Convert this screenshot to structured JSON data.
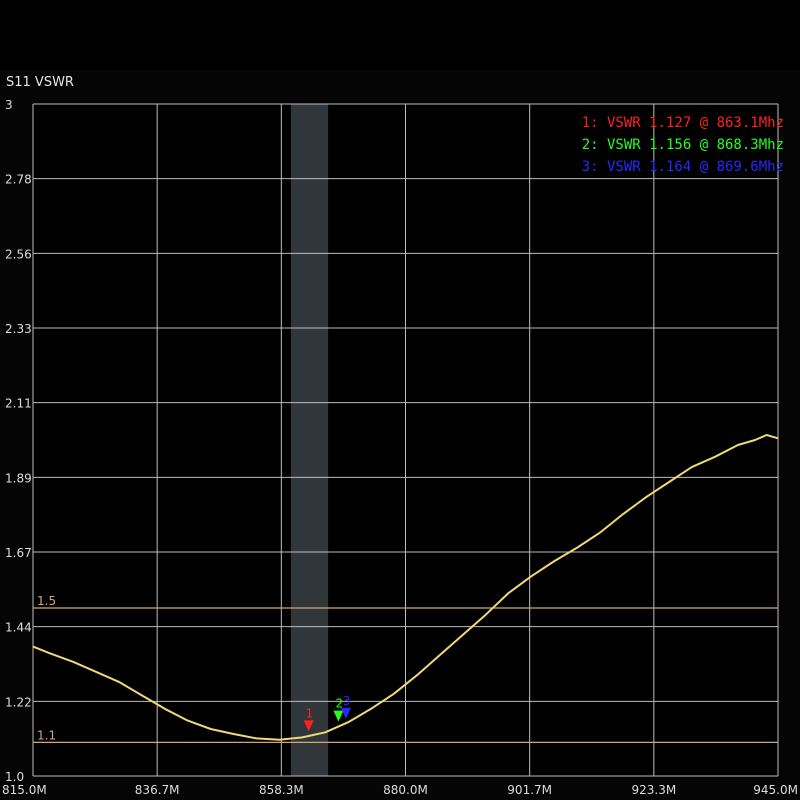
{
  "chart_data": {
    "type": "line",
    "title": "S11 VSWR",
    "xlabel": "",
    "ylabel": "",
    "x_ticks": [
      "815.0M",
      "836.7M",
      "858.3M",
      "880.0M",
      "901.7M",
      "923.3M",
      "945.0M"
    ],
    "y_ticks": [
      "1.0",
      "1.22",
      "1.44",
      "1.67",
      "1.89",
      "2.11",
      "2.33",
      "2.56",
      "2.78",
      "3"
    ],
    "xlim": [
      815.0,
      945.0
    ],
    "ylim": [
      1.0,
      3.0
    ],
    "x_unit": "MHz",
    "grid": true,
    "highlight_band": [
      860.0,
      866.5
    ],
    "ref_lines": [
      {
        "value": 1.5,
        "label": "1.5",
        "color": "#d2a679"
      },
      {
        "value": 1.1,
        "label": "1.1",
        "color": "#d2a679"
      }
    ],
    "series": [
      {
        "color": "#f0d878",
        "x": [
          815.0,
          818.0,
          822.0,
          826.0,
          830.0,
          834.0,
          838.0,
          842.0,
          846.0,
          850.0,
          854.0,
          858.0,
          862.0,
          866.0,
          870.0,
          874.0,
          878.0,
          882.0,
          886.0,
          890.0,
          894.0,
          898.0,
          902.0,
          906.0,
          910.0,
          914.0,
          918.0,
          922.0,
          926.0,
          930.0,
          934.0,
          938.0,
          941.0,
          943.0,
          945.0
        ],
        "y": [
          1.385,
          1.365,
          1.34,
          1.31,
          1.28,
          1.24,
          1.2,
          1.165,
          1.14,
          1.125,
          1.112,
          1.108,
          1.115,
          1.13,
          1.16,
          1.2,
          1.245,
          1.3,
          1.36,
          1.42,
          1.48,
          1.545,
          1.595,
          1.64,
          1.68,
          1.725,
          1.78,
          1.83,
          1.875,
          1.92,
          1.95,
          1.985,
          2.0,
          2.015,
          2.005
        ]
      }
    ],
    "markers": [
      {
        "id": "1",
        "x": 863.1,
        "y": 1.127,
        "color": "#ff2020",
        "text": "1: VSWR 1.127 @ 863.1Mhz"
      },
      {
        "id": "2",
        "x": 868.3,
        "y": 1.156,
        "color": "#20ff20",
        "text": "2: VSWR 1.156 @ 868.3Mhz"
      },
      {
        "id": "3",
        "x": 869.6,
        "y": 1.164,
        "color": "#2828ff",
        "text": "3: VSWR 1.164 @ 869.6Mhz"
      }
    ],
    "legend_position": "top-right"
  },
  "colors": {
    "background": "#000000",
    "grid": "#bdbdbd",
    "band": "#3a3f44"
  }
}
